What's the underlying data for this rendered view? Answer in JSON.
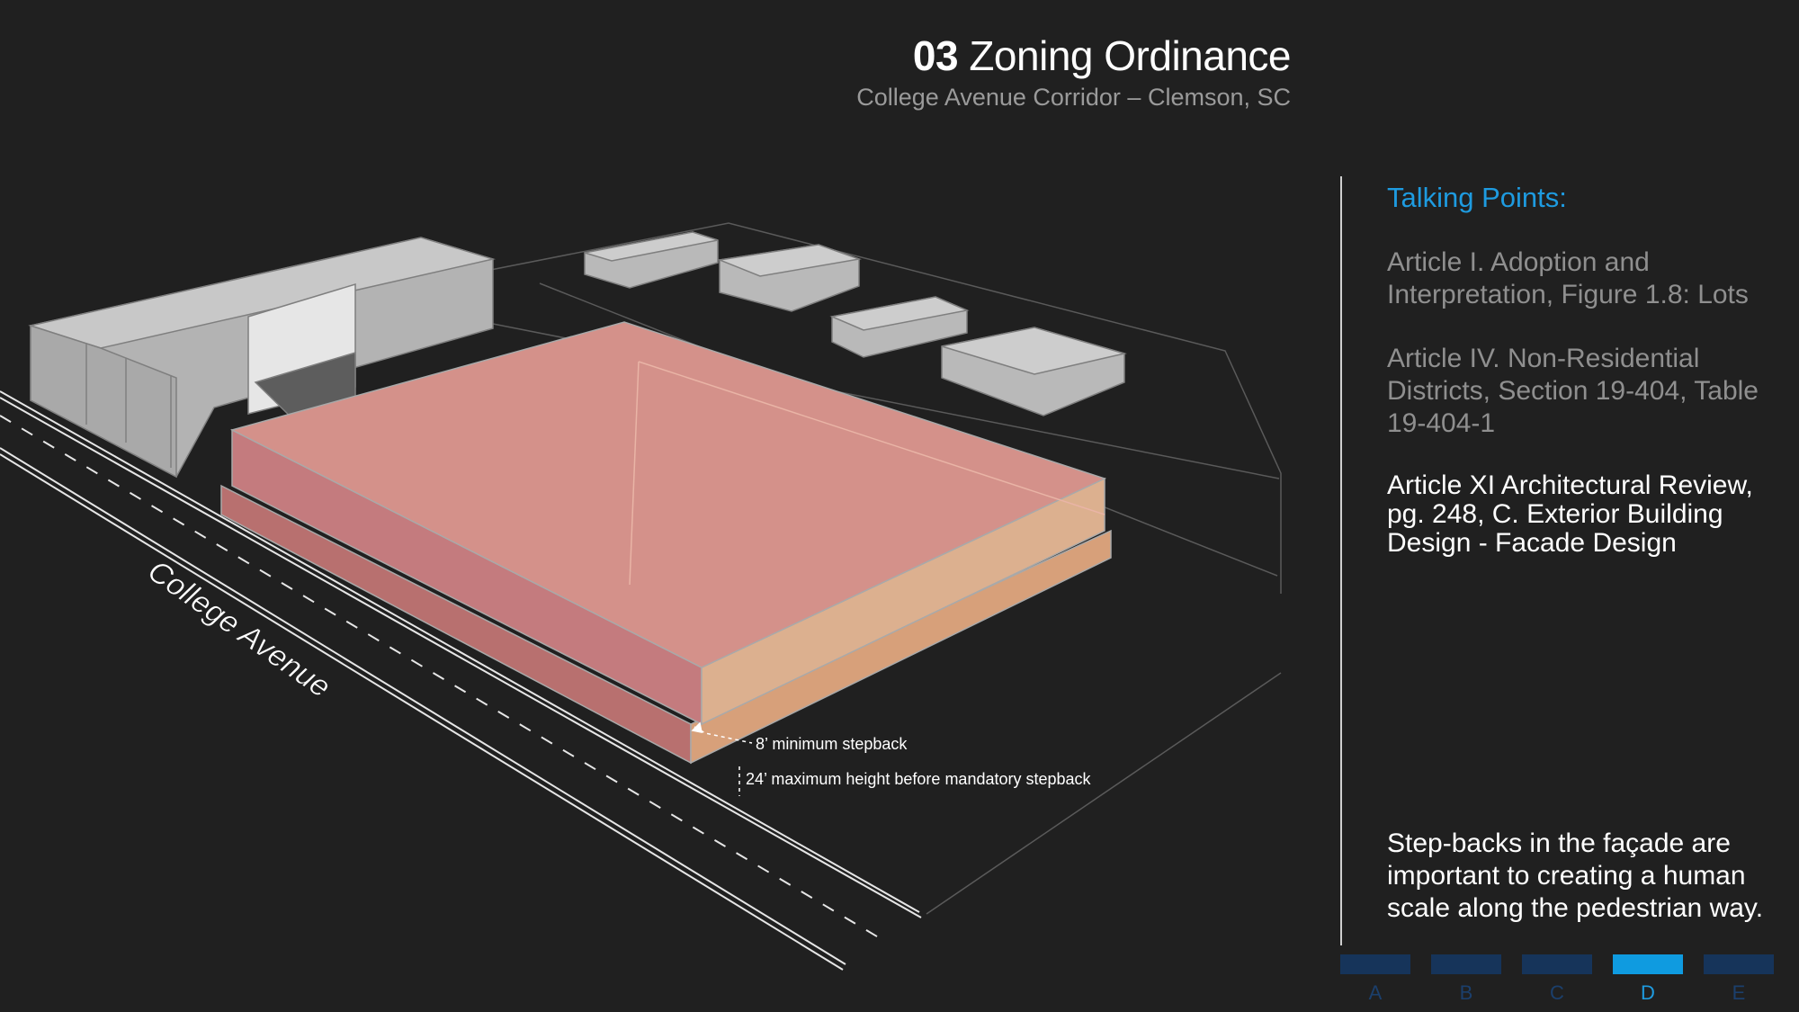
{
  "header": {
    "title_number": "03",
    "title_text": "Zoning Ordinance",
    "subtitle": "College Avenue Corridor – Clemson, SC"
  },
  "diagram": {
    "street_label": "College Avenue",
    "annotations": {
      "stepback": "8’ minimum stepback",
      "max_height": "24’ maximum height before mandatory stepback"
    },
    "colors": {
      "background": "#202020",
      "proposed_top": "#d6928a",
      "proposed_front": "#c97a7d",
      "proposed_side": "#e0b090",
      "context_buildings": "#bdbdbd"
    }
  },
  "panel": {
    "heading": "Talking Points:",
    "refs": [
      "Article I. Adoption and Interpretation, Figure 1.8: Lots",
      "Article IV. Non-Residential Districts, Section 19-404, Table 19-404-1",
      "Article XI Architectural Review, pg. 248, C. Exterior Building Design - Facade Design"
    ],
    "note": "Step-backs in the façade are important to creating a human scale along the pedestrian way."
  },
  "nav": {
    "tabs": [
      "A",
      "B",
      "C",
      "D",
      "E"
    ],
    "active": "D",
    "colors": {
      "inactive": "#16345a",
      "active": "#0f9be0"
    }
  }
}
